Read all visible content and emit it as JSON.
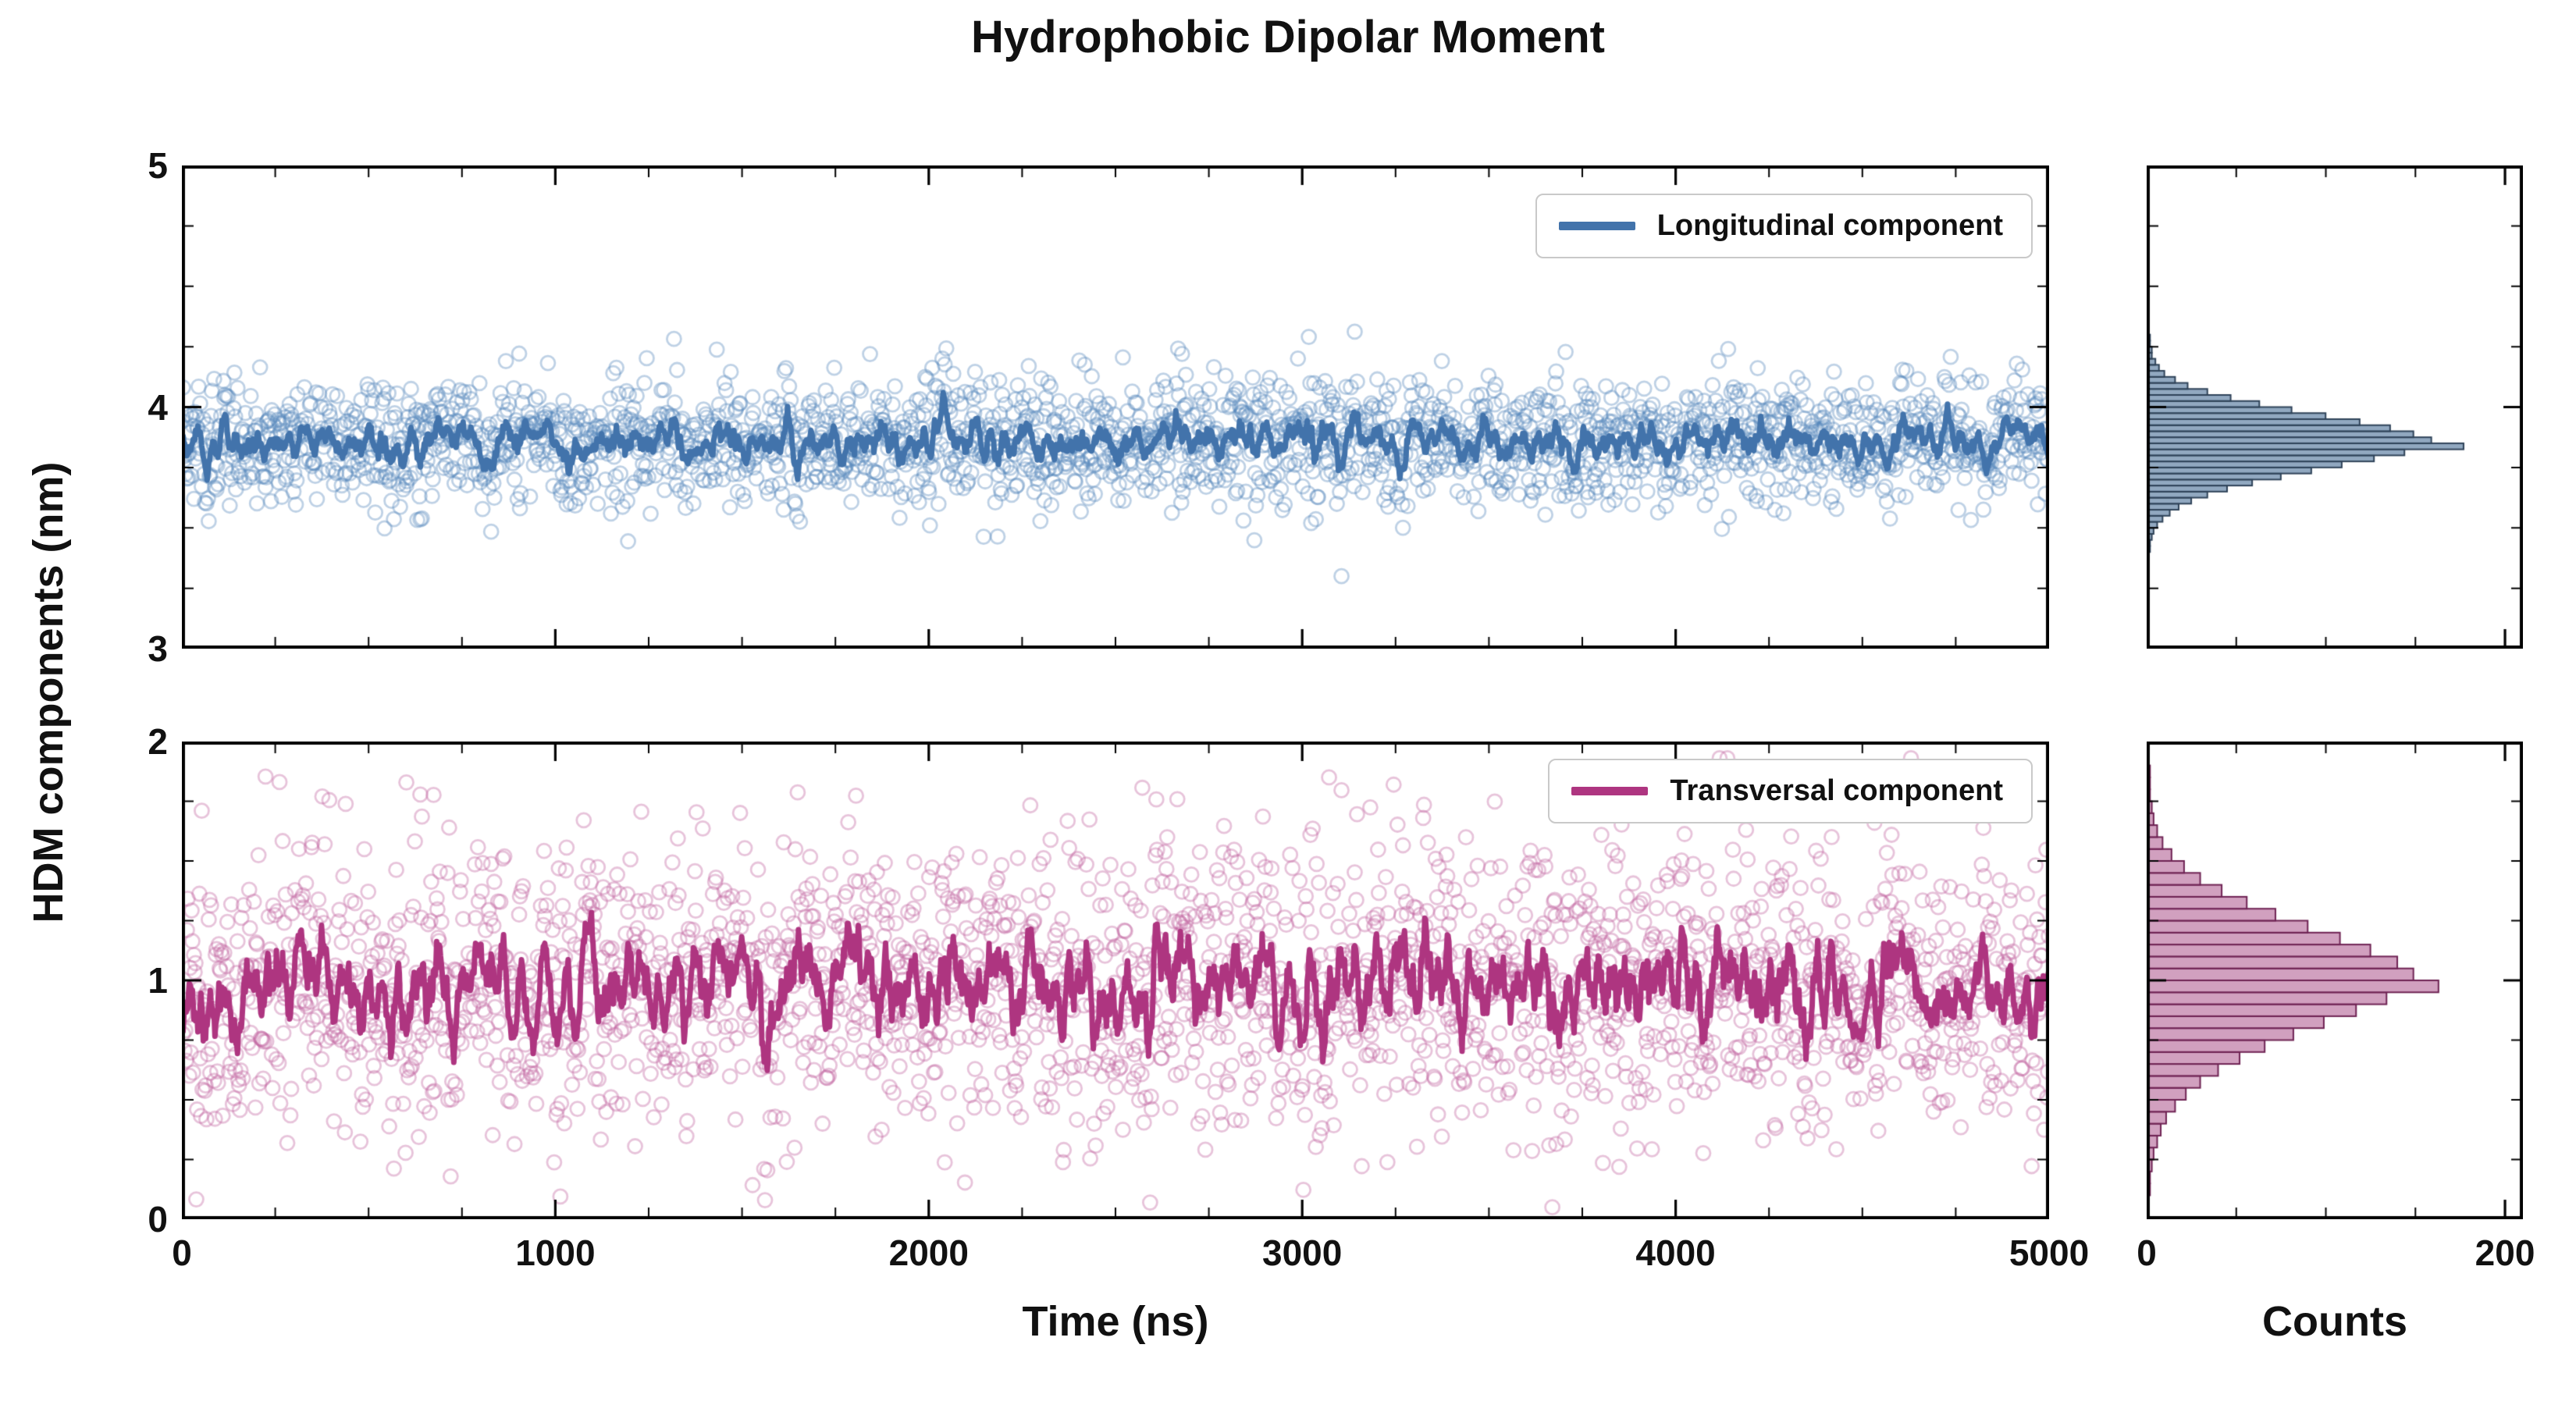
{
  "title": "Hydrophobic Dipolar Moment",
  "labels": {
    "ylabel": "HDM components (nm)",
    "xlabel_time": "Time (ns)",
    "xlabel_counts": "Counts"
  },
  "colors": {
    "longitudinal_scatter": "#5585bb",
    "longitudinal_line": "#4273ab",
    "longitudinal_hist_fill": "#7e99b5",
    "longitudinal_hist_edge": "#2e4258",
    "transversal_scatter": "#c0609e",
    "transversal_line": "#ae3580",
    "transversal_hist_fill": "#c98fb4",
    "transversal_hist_edge": "#6e2253",
    "axis": "#000000",
    "legend_border": "#c9c9c9"
  },
  "chart_data": [
    {
      "id": "longitudinal-timeseries",
      "type": "scatter",
      "legend": "Longitudinal component",
      "legend_position": "upper right",
      "x_range": [
        0,
        5000
      ],
      "y_range": [
        3,
        5
      ],
      "x_ticks": [
        0,
        1000,
        2000,
        3000,
        4000,
        5000
      ],
      "x_minor_step": 250,
      "y_ticks": [
        3,
        4,
        5
      ],
      "y_minor_step": 0.25,
      "n_points": 2400,
      "mean": 3.85,
      "sd": 0.135,
      "y_clip": [
        3.3,
        4.45
      ],
      "seed": 1337,
      "line_window": 9,
      "grid": false
    },
    {
      "id": "transversal-timeseries",
      "type": "scatter",
      "legend": "Transversal component",
      "legend_position": "upper right",
      "x_range": [
        0,
        5000
      ],
      "y_range": [
        0,
        2
      ],
      "x_ticks": [
        0,
        1000,
        2000,
        3000,
        4000,
        5000
      ],
      "x_minor_step": 250,
      "y_ticks": [
        0,
        1,
        2
      ],
      "y_minor_step": 0.25,
      "n_points": 2400,
      "mean": 0.97,
      "sd": 0.31,
      "y_clip": [
        0.05,
        1.93
      ],
      "seed": 2024,
      "line_window": 9,
      "grid": false
    },
    {
      "id": "longitudinal-histogram",
      "type": "bar",
      "orientation": "horizontal",
      "x_range": [
        0,
        210
      ],
      "x_ticks": [
        0,
        200
      ],
      "x_minor_step": 50,
      "y_range": [
        3,
        5
      ],
      "y_ticks": [
        3,
        4,
        5
      ],
      "y_minor_step": 0.25,
      "bin_start": 3.4,
      "bin_width": 0.025,
      "counts": [
        1,
        1,
        2,
        3,
        5,
        8,
        12,
        17,
        24,
        33,
        44,
        58,
        74,
        91,
        108,
        126,
        143,
        176,
        158,
        148,
        135,
        118,
        99,
        80,
        62,
        46,
        33,
        22,
        15,
        9,
        6,
        4,
        2,
        2,
        1,
        1
      ]
    },
    {
      "id": "transversal-histogram",
      "type": "bar",
      "orientation": "horizontal",
      "x_range": [
        0,
        210
      ],
      "x_ticks": [
        0,
        200
      ],
      "x_minor_step": 50,
      "y_range": [
        0,
        2
      ],
      "y_ticks": [
        0,
        1,
        2
      ],
      "y_minor_step": 0.25,
      "bin_start": 0.1,
      "bin_width": 0.05,
      "counts": [
        1,
        1,
        2,
        3,
        5,
        7,
        10,
        15,
        21,
        29,
        39,
        51,
        65,
        81,
        98,
        116,
        133,
        162,
        148,
        139,
        124,
        107,
        89,
        71,
        55,
        41,
        29,
        20,
        13,
        8,
        5,
        3,
        2,
        1,
        1,
        1
      ]
    }
  ]
}
